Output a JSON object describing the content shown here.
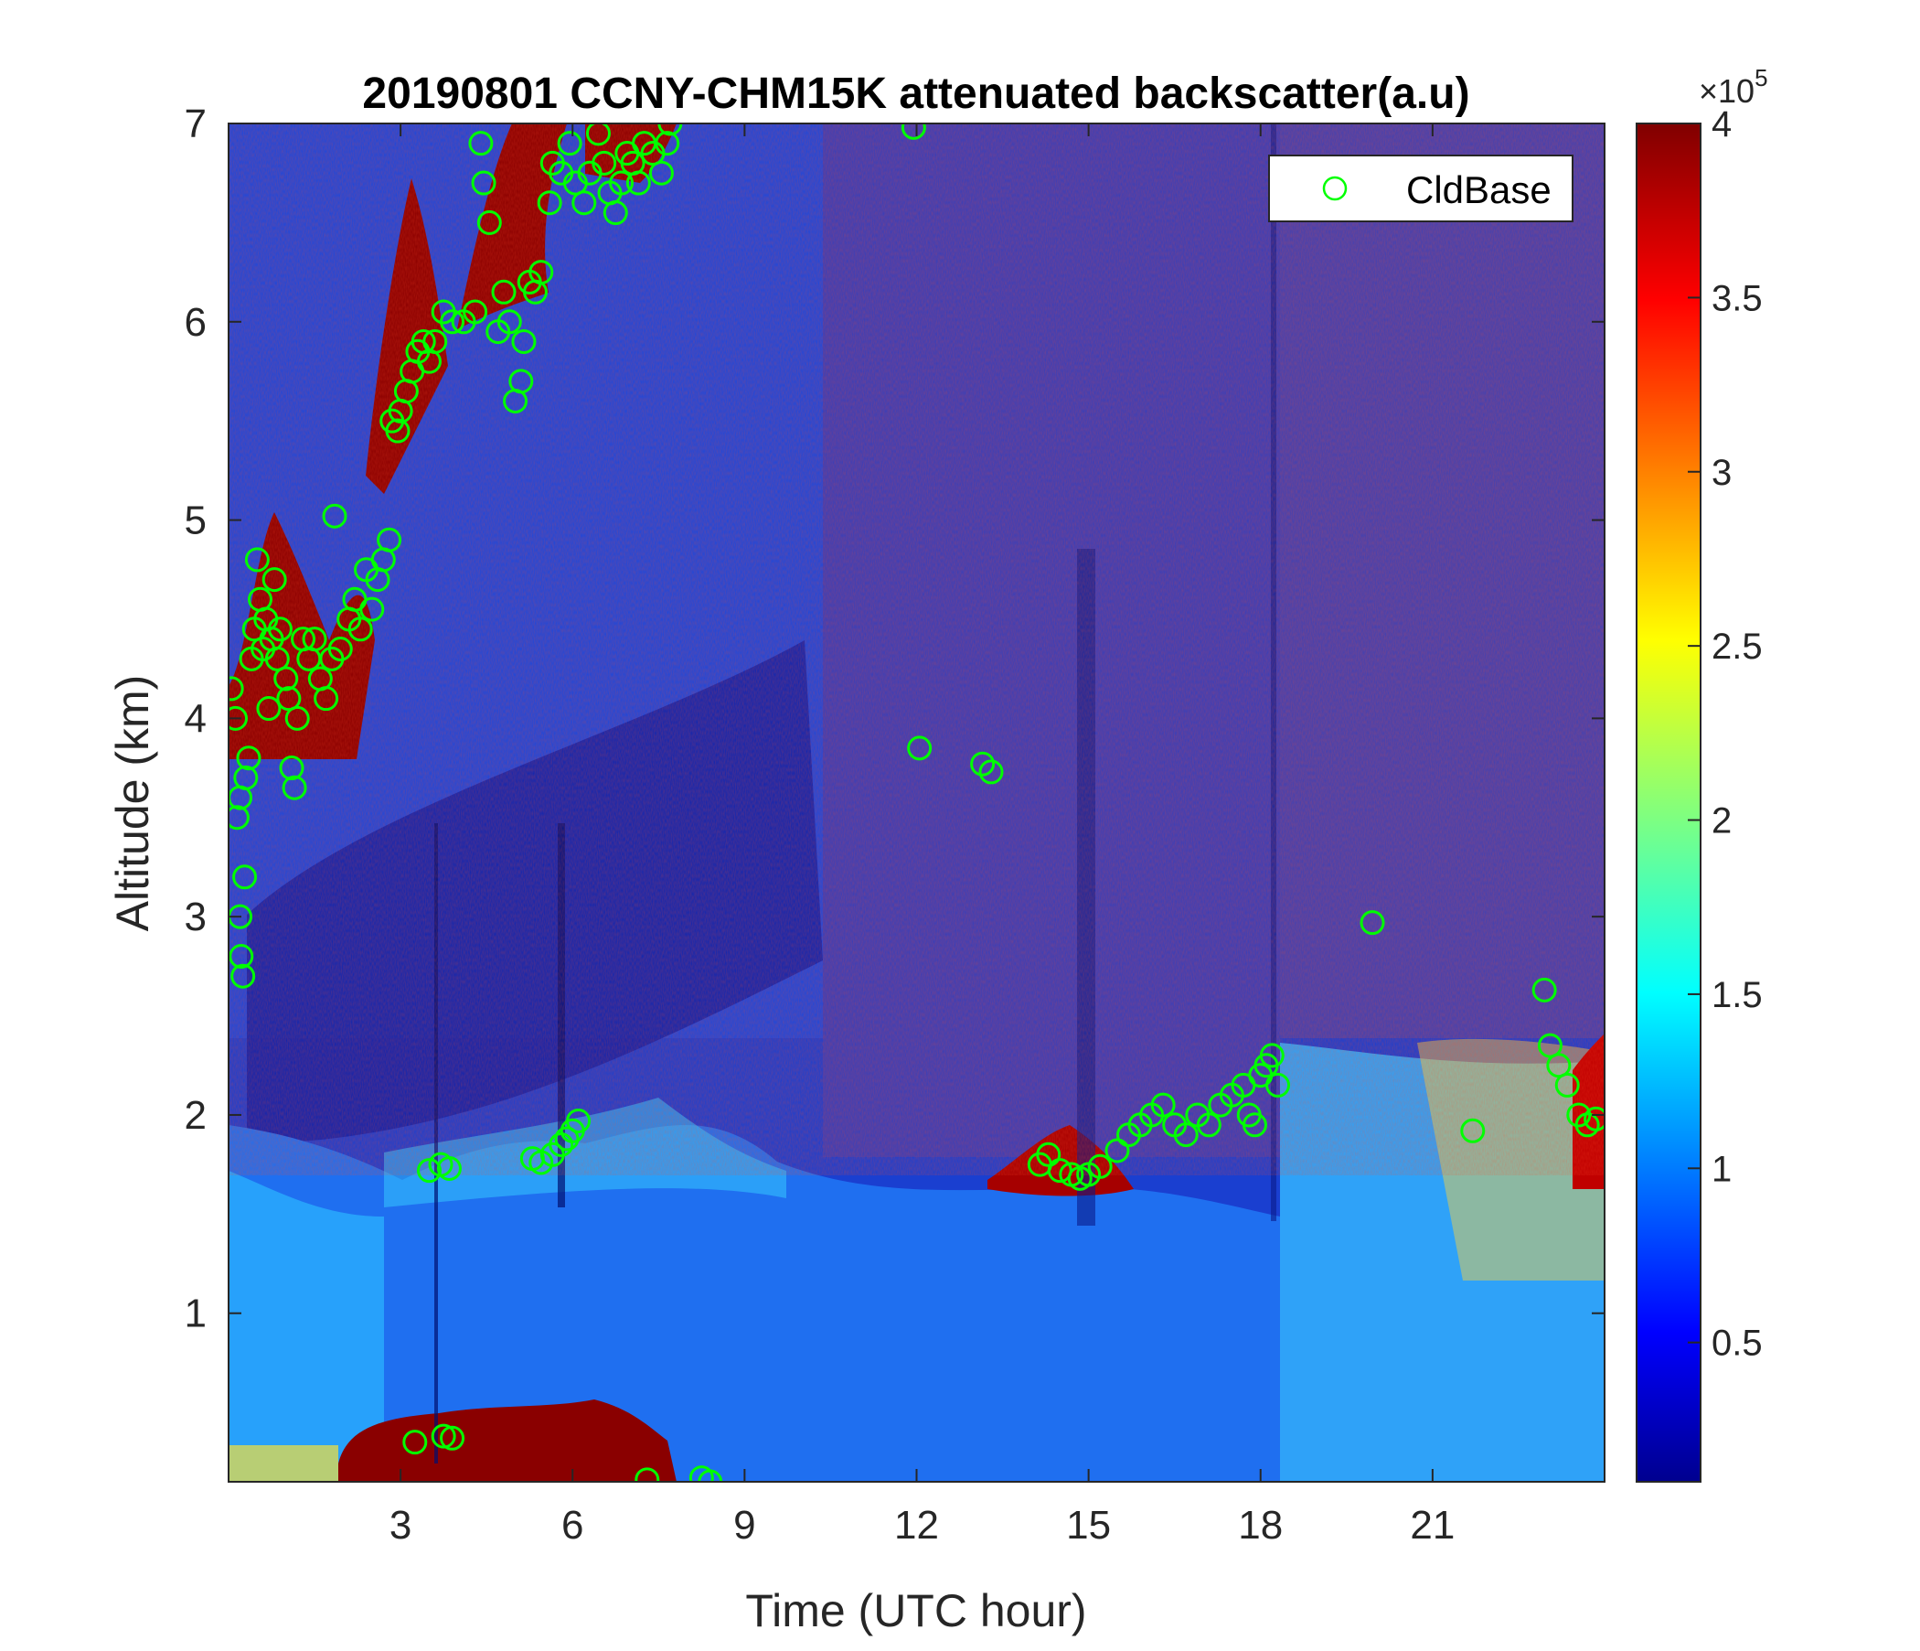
{
  "chart_data": {
    "type": "heatmap",
    "title": "20190801 CCNY-CHM15K attenuated backscatter(a.u)",
    "xlabel": "Time (UTC hour)",
    "ylabel": "Altitude (km)",
    "xlim": [
      0,
      24
    ],
    "ylim": [
      0.15,
      7
    ],
    "xticks": [
      3,
      6,
      9,
      12,
      15,
      18,
      21
    ],
    "xtick_labels": [
      "3",
      "6",
      "9",
      "12",
      "15",
      "18",
      "21"
    ],
    "yticks": [
      1,
      2,
      3,
      4,
      5,
      6,
      7
    ],
    "ytick_labels": [
      "1",
      "2",
      "3",
      "4",
      "5",
      "6",
      "7"
    ],
    "colorbar": {
      "colormap": "jet",
      "range": [
        10000,
        400000
      ],
      "ticks": [
        0.5,
        1,
        1.5,
        2,
        2.5,
        3,
        3.5,
        4
      ],
      "tick_labels": [
        "0.5",
        "1",
        "1.5",
        "2",
        "2.5",
        "3",
        "3.5",
        "4"
      ],
      "exponent_label": "×10",
      "exponent_power": "5"
    },
    "legend": {
      "position": "top-right",
      "entries": [
        {
          "name": "CldBase",
          "marker": "circle",
          "color": "#00ff00"
        }
      ]
    },
    "series": [
      {
        "name": "CldBase",
        "marker_color": "#00ff00",
        "points": [
          [
            0.05,
            4.15
          ],
          [
            0.12,
            4.0
          ],
          [
            0.15,
            3.5
          ],
          [
            0.2,
            3.6
          ],
          [
            0.2,
            3.0
          ],
          [
            0.22,
            2.8
          ],
          [
            0.25,
            2.7
          ],
          [
            0.28,
            3.2
          ],
          [
            0.3,
            3.7
          ],
          [
            0.35,
            3.8
          ],
          [
            0.4,
            4.3
          ],
          [
            0.45,
            4.45
          ],
          [
            0.5,
            4.8
          ],
          [
            0.55,
            4.6
          ],
          [
            0.6,
            4.35
          ],
          [
            0.65,
            4.5
          ],
          [
            0.7,
            4.05
          ],
          [
            0.75,
            4.4
          ],
          [
            0.8,
            4.7
          ],
          [
            0.85,
            4.3
          ],
          [
            0.9,
            4.45
          ],
          [
            1.0,
            4.2
          ],
          [
            1.05,
            4.1
          ],
          [
            1.1,
            3.75
          ],
          [
            1.15,
            3.65
          ],
          [
            1.2,
            4.0
          ],
          [
            1.3,
            4.4
          ],
          [
            1.4,
            4.3
          ],
          [
            1.5,
            4.4
          ],
          [
            1.6,
            4.2
          ],
          [
            1.7,
            4.1
          ],
          [
            1.8,
            4.3
          ],
          [
            1.85,
            5.02
          ],
          [
            1.95,
            4.35
          ],
          [
            2.1,
            4.5
          ],
          [
            2.2,
            4.6
          ],
          [
            2.3,
            4.45
          ],
          [
            2.4,
            4.75
          ],
          [
            2.5,
            4.55
          ],
          [
            2.6,
            4.7
          ],
          [
            2.7,
            4.8
          ],
          [
            2.8,
            4.9
          ],
          [
            2.85,
            5.5
          ],
          [
            2.95,
            5.45
          ],
          [
            3.0,
            5.55
          ],
          [
            3.1,
            5.65
          ],
          [
            3.2,
            5.75
          ],
          [
            3.3,
            5.85
          ],
          [
            3.4,
            5.9
          ],
          [
            3.5,
            5.8
          ],
          [
            3.6,
            5.9
          ],
          [
            3.75,
            6.05
          ],
          [
            3.9,
            6.0
          ],
          [
            4.1,
            6.0
          ],
          [
            4.3,
            6.05
          ],
          [
            4.4,
            6.9
          ],
          [
            4.45,
            6.7
          ],
          [
            4.55,
            6.5
          ],
          [
            4.7,
            5.95
          ],
          [
            4.8,
            6.15
          ],
          [
            4.9,
            6.0
          ],
          [
            5.0,
            5.6
          ],
          [
            5.1,
            5.7
          ],
          [
            5.15,
            5.9
          ],
          [
            5.25,
            6.2
          ],
          [
            5.35,
            6.15
          ],
          [
            5.45,
            6.25
          ],
          [
            5.6,
            6.6
          ],
          [
            5.65,
            6.8
          ],
          [
            5.8,
            6.75
          ],
          [
            5.95,
            6.9
          ],
          [
            6.05,
            6.7
          ],
          [
            6.2,
            6.6
          ],
          [
            6.3,
            6.75
          ],
          [
            6.45,
            6.95
          ],
          [
            6.55,
            6.8
          ],
          [
            6.65,
            6.65
          ],
          [
            6.75,
            6.55
          ],
          [
            6.85,
            6.7
          ],
          [
            6.95,
            6.85
          ],
          [
            7.05,
            6.8
          ],
          [
            7.15,
            6.7
          ],
          [
            7.25,
            6.9
          ],
          [
            7.4,
            6.85
          ],
          [
            7.55,
            6.75
          ],
          [
            7.65,
            6.9
          ],
          [
            7.7,
            7.0
          ],
          [
            3.25,
            0.35
          ],
          [
            3.75,
            0.38
          ],
          [
            3.9,
            0.37
          ],
          [
            7.3,
            0.16
          ],
          [
            8.25,
            0.17
          ],
          [
            8.4,
            0.15
          ],
          [
            3.5,
            1.72
          ],
          [
            3.7,
            1.75
          ],
          [
            3.85,
            1.73
          ],
          [
            5.3,
            1.78
          ],
          [
            5.45,
            1.76
          ],
          [
            5.65,
            1.8
          ],
          [
            5.8,
            1.85
          ],
          [
            5.9,
            1.88
          ],
          [
            6.0,
            1.92
          ],
          [
            6.1,
            1.97
          ],
          [
            11.95,
            6.98
          ],
          [
            12.05,
            3.85
          ],
          [
            13.15,
            3.77
          ],
          [
            13.3,
            3.73
          ],
          [
            14.15,
            1.75
          ],
          [
            14.3,
            1.8
          ],
          [
            14.5,
            1.72
          ],
          [
            14.7,
            1.7
          ],
          [
            14.85,
            1.68
          ],
          [
            15.0,
            1.7
          ],
          [
            15.2,
            1.74
          ],
          [
            15.5,
            1.82
          ],
          [
            15.7,
            1.9
          ],
          [
            15.9,
            1.95
          ],
          [
            16.1,
            2.0
          ],
          [
            16.3,
            2.05
          ],
          [
            16.5,
            1.95
          ],
          [
            16.7,
            1.9
          ],
          [
            16.9,
            2.0
          ],
          [
            17.1,
            1.95
          ],
          [
            17.3,
            2.05
          ],
          [
            17.5,
            2.1
          ],
          [
            17.7,
            2.15
          ],
          [
            17.8,
            2.0
          ],
          [
            17.9,
            1.95
          ],
          [
            18.0,
            2.2
          ],
          [
            18.1,
            2.25
          ],
          [
            18.2,
            2.3
          ],
          [
            18.3,
            2.15
          ],
          [
            19.95,
            2.97
          ],
          [
            21.7,
            1.92
          ],
          [
            22.95,
            2.63
          ],
          [
            23.05,
            2.35
          ],
          [
            23.2,
            2.25
          ],
          [
            23.35,
            2.15
          ],
          [
            23.55,
            2.0
          ],
          [
            23.7,
            1.95
          ],
          [
            23.85,
            1.98
          ]
        ]
      }
    ],
    "regions_note_values": {
      "colormap_stops": [
        "#00008f",
        "#0000ff",
        "#00ffff",
        "#ffff00",
        "#ff0000",
        "#800000"
      ]
    }
  }
}
